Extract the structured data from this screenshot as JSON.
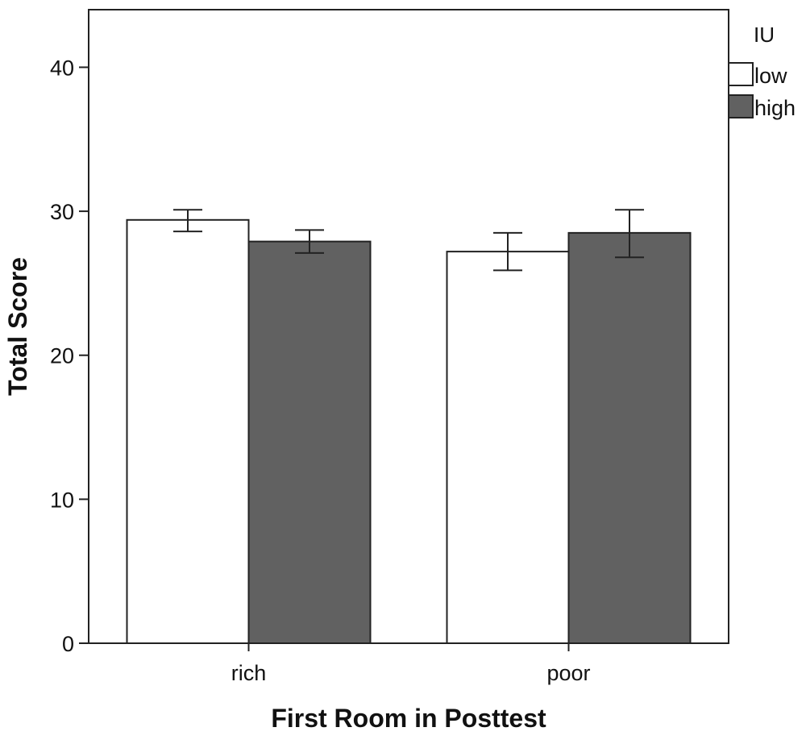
{
  "chart_data": {
    "type": "bar",
    "title": "",
    "xlabel": "First Room in Posttest",
    "ylabel": "Total Score",
    "categories": [
      "rich",
      "poor"
    ],
    "ylim": [
      0,
      44
    ],
    "yticks": [
      0,
      10,
      20,
      30,
      40
    ],
    "grid": false,
    "legend": {
      "title": "IU",
      "position": "top-right outside plot"
    },
    "series": [
      {
        "name": "low",
        "color": "#ffffff",
        "values": [
          29.4,
          27.2
        ],
        "error_low": [
          28.6,
          25.9
        ],
        "error_high": [
          30.1,
          28.5
        ]
      },
      {
        "name": "high",
        "color": "#616161",
        "values": [
          27.9,
          28.5
        ],
        "error_low": [
          27.1,
          26.8
        ],
        "error_high": [
          28.7,
          30.1
        ]
      }
    ]
  }
}
